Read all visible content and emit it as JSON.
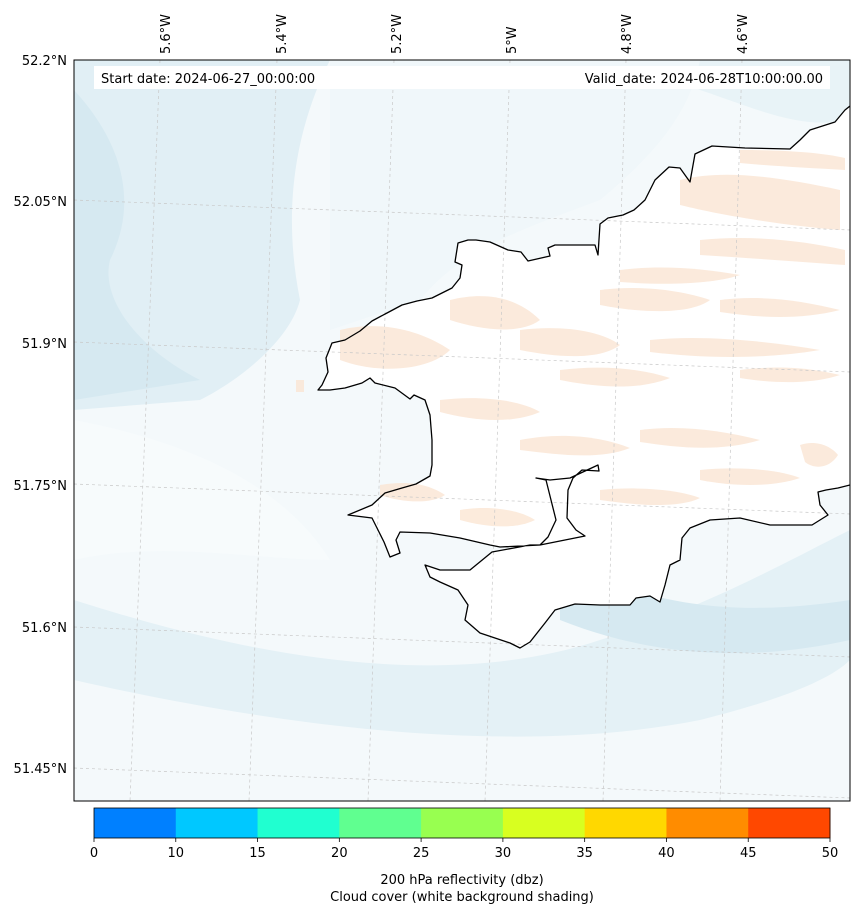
{
  "map": {
    "start_label": "Start date: 2024-06-27_00:00:00",
    "valid_label": "Valid_date: 2024-06-28T10:00:00.00",
    "lon_ticks": [
      "5.6°W",
      "5.4°W",
      "5.2°W",
      "5°W",
      "4.8°W",
      "4.6°W"
    ],
    "lat_ticks": [
      "52.2°N",
      "52.05°N",
      "51.9°N",
      "51.75°N",
      "51.6°N",
      "51.45°N"
    ],
    "coastline_color": "#000000",
    "gridline_color": "#c8c8c8"
  },
  "colorbar": {
    "ticks": [
      "0",
      "10",
      "15",
      "20",
      "25",
      "30",
      "35",
      "40",
      "45",
      "50"
    ],
    "colors": [
      "#0080ff",
      "#00c8ff",
      "#20ffd0",
      "#60ff90",
      "#98ff50",
      "#d8ff20",
      "#ffd800",
      "#ff8c00",
      "#ff4800"
    ],
    "label_line1": "200 hPa reflectivity (dbz)",
    "label_line2": "Cloud cover (white background shading)"
  }
}
